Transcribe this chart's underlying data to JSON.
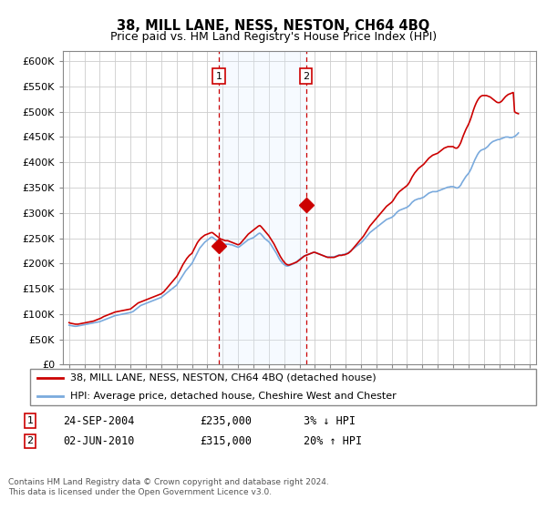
{
  "title": "38, MILL LANE, NESS, NESTON, CH64 4BQ",
  "subtitle": "Price paid vs. HM Land Registry's House Price Index (HPI)",
  "ylabel_ticks": [
    "£0",
    "£50K",
    "£100K",
    "£150K",
    "£200K",
    "£250K",
    "£300K",
    "£350K",
    "£400K",
    "£450K",
    "£500K",
    "£550K",
    "£600K"
  ],
  "ytick_values": [
    0,
    50000,
    100000,
    150000,
    200000,
    250000,
    300000,
    350000,
    400000,
    450000,
    500000,
    550000,
    600000
  ],
  "ylim": [
    0,
    620000
  ],
  "legend_line1": "38, MILL LANE, NESS, NESTON, CH64 4BQ (detached house)",
  "legend_line2": "HPI: Average price, detached house, Cheshire West and Chester",
  "transaction1_label": "1",
  "transaction1_date": "24-SEP-2004",
  "transaction1_price": "£235,000",
  "transaction1_hpi": "3% ↓ HPI",
  "transaction1_year": 2004.75,
  "transaction1_value": 235000,
  "transaction2_label": "2",
  "transaction2_date": "02-JUN-2010",
  "transaction2_price": "£315,000",
  "transaction2_hpi": "20% ↑ HPI",
  "transaction2_year": 2010.42,
  "transaction2_value": 315000,
  "footnote1": "Contains HM Land Registry data © Crown copyright and database right 2024.",
  "footnote2": "This data is licensed under the Open Government Licence v3.0.",
  "line_color_property": "#cc0000",
  "line_color_hpi": "#7aaadd",
  "shade_color": "#ddeeff",
  "vline_color": "#cc0000",
  "marker_box_color": "#cc0000",
  "hpi_data_years": [
    1995.0,
    1995.083,
    1995.167,
    1995.25,
    1995.333,
    1995.417,
    1995.5,
    1995.583,
    1995.667,
    1995.75,
    1995.833,
    1995.917,
    1996.0,
    1996.083,
    1996.167,
    1996.25,
    1996.333,
    1996.417,
    1996.5,
    1996.583,
    1996.667,
    1996.75,
    1996.833,
    1996.917,
    1997.0,
    1997.083,
    1997.167,
    1997.25,
    1997.333,
    1997.417,
    1997.5,
    1997.583,
    1997.667,
    1997.75,
    1997.833,
    1997.917,
    1998.0,
    1998.083,
    1998.167,
    1998.25,
    1998.333,
    1998.417,
    1998.5,
    1998.583,
    1998.667,
    1998.75,
    1998.833,
    1998.917,
    1999.0,
    1999.083,
    1999.167,
    1999.25,
    1999.333,
    1999.417,
    1999.5,
    1999.583,
    1999.667,
    1999.75,
    1999.833,
    1999.917,
    2000.0,
    2000.083,
    2000.167,
    2000.25,
    2000.333,
    2000.417,
    2000.5,
    2000.583,
    2000.667,
    2000.75,
    2000.833,
    2000.917,
    2001.0,
    2001.083,
    2001.167,
    2001.25,
    2001.333,
    2001.417,
    2001.5,
    2001.583,
    2001.667,
    2001.75,
    2001.833,
    2001.917,
    2002.0,
    2002.083,
    2002.167,
    2002.25,
    2002.333,
    2002.417,
    2002.5,
    2002.583,
    2002.667,
    2002.75,
    2002.833,
    2002.917,
    2003.0,
    2003.083,
    2003.167,
    2003.25,
    2003.333,
    2003.417,
    2003.5,
    2003.583,
    2003.667,
    2003.75,
    2003.833,
    2003.917,
    2004.0,
    2004.083,
    2004.167,
    2004.25,
    2004.333,
    2004.417,
    2004.5,
    2004.583,
    2004.667,
    2004.75,
    2004.833,
    2004.917,
    2005.0,
    2005.083,
    2005.167,
    2005.25,
    2005.333,
    2005.417,
    2005.5,
    2005.583,
    2005.667,
    2005.75,
    2005.833,
    2005.917,
    2006.0,
    2006.083,
    2006.167,
    2006.25,
    2006.333,
    2006.417,
    2006.5,
    2006.583,
    2006.667,
    2006.75,
    2006.833,
    2006.917,
    2007.0,
    2007.083,
    2007.167,
    2007.25,
    2007.333,
    2007.417,
    2007.5,
    2007.583,
    2007.667,
    2007.75,
    2007.833,
    2007.917,
    2008.0,
    2008.083,
    2008.167,
    2008.25,
    2008.333,
    2008.417,
    2008.5,
    2008.583,
    2008.667,
    2008.75,
    2008.833,
    2008.917,
    2009.0,
    2009.083,
    2009.167,
    2009.25,
    2009.333,
    2009.417,
    2009.5,
    2009.583,
    2009.667,
    2009.75,
    2009.833,
    2009.917,
    2010.0,
    2010.083,
    2010.167,
    2010.25,
    2010.333,
    2010.417,
    2010.5,
    2010.583,
    2010.667,
    2010.75,
    2010.833,
    2010.917,
    2011.0,
    2011.083,
    2011.167,
    2011.25,
    2011.333,
    2011.417,
    2011.5,
    2011.583,
    2011.667,
    2011.75,
    2011.833,
    2011.917,
    2012.0,
    2012.083,
    2012.167,
    2012.25,
    2012.333,
    2012.417,
    2012.5,
    2012.583,
    2012.667,
    2012.75,
    2012.833,
    2012.917,
    2013.0,
    2013.083,
    2013.167,
    2013.25,
    2013.333,
    2013.417,
    2013.5,
    2013.583,
    2013.667,
    2013.75,
    2013.833,
    2013.917,
    2014.0,
    2014.083,
    2014.167,
    2014.25,
    2014.333,
    2014.417,
    2014.5,
    2014.583,
    2014.667,
    2014.75,
    2014.833,
    2014.917,
    2015.0,
    2015.083,
    2015.167,
    2015.25,
    2015.333,
    2015.417,
    2015.5,
    2015.583,
    2015.667,
    2015.75,
    2015.833,
    2015.917,
    2016.0,
    2016.083,
    2016.167,
    2016.25,
    2016.333,
    2016.417,
    2016.5,
    2016.583,
    2016.667,
    2016.75,
    2016.833,
    2016.917,
    2017.0,
    2017.083,
    2017.167,
    2017.25,
    2017.333,
    2017.417,
    2017.5,
    2017.583,
    2017.667,
    2017.75,
    2017.833,
    2017.917,
    2018.0,
    2018.083,
    2018.167,
    2018.25,
    2018.333,
    2018.417,
    2018.5,
    2018.583,
    2018.667,
    2018.75,
    2018.833,
    2018.917,
    2019.0,
    2019.083,
    2019.167,
    2019.25,
    2019.333,
    2019.417,
    2019.5,
    2019.583,
    2019.667,
    2019.75,
    2019.833,
    2019.917,
    2020.0,
    2020.083,
    2020.167,
    2020.25,
    2020.333,
    2020.417,
    2020.5,
    2020.583,
    2020.667,
    2020.75,
    2020.833,
    2020.917,
    2021.0,
    2021.083,
    2021.167,
    2021.25,
    2021.333,
    2021.417,
    2021.5,
    2021.583,
    2021.667,
    2021.75,
    2021.833,
    2021.917,
    2022.0,
    2022.083,
    2022.167,
    2022.25,
    2022.333,
    2022.417,
    2022.5,
    2022.583,
    2022.667,
    2022.75,
    2022.833,
    2022.917,
    2023.0,
    2023.083,
    2023.167,
    2023.25,
    2023.333,
    2023.417,
    2023.5,
    2023.583,
    2023.667,
    2023.75,
    2023.833,
    2023.917,
    2024.0,
    2024.083,
    2024.167,
    2024.25
  ],
  "hpi_data_values": [
    78000,
    77500,
    77000,
    76500,
    76000,
    75800,
    76000,
    76500,
    77000,
    77500,
    78000,
    78500,
    79000,
    79500,
    80000,
    80500,
    81000,
    81500,
    82000,
    82500,
    83000,
    83500,
    84000,
    84500,
    85000,
    86000,
    87000,
    88000,
    89000,
    90000,
    91000,
    92000,
    93000,
    94000,
    95000,
    96000,
    97000,
    97500,
    98000,
    98500,
    99000,
    99500,
    100000,
    100500,
    101000,
    101500,
    102000,
    102500,
    103000,
    104000,
    105000,
    107000,
    109000,
    111000,
    113000,
    115000,
    117000,
    118000,
    119000,
    120000,
    121000,
    122000,
    123000,
    124000,
    125000,
    126000,
    127000,
    128000,
    129000,
    130000,
    131000,
    132000,
    133000,
    135000,
    137000,
    139000,
    141000,
    143000,
    145000,
    147000,
    149000,
    151000,
    153000,
    155000,
    157000,
    161000,
    165000,
    169000,
    173000,
    177000,
    181000,
    185000,
    188000,
    191000,
    194000,
    197000,
    200000,
    205000,
    210000,
    215000,
    220000,
    225000,
    230000,
    233000,
    236000,
    239000,
    242000,
    244000,
    246000,
    248000,
    250000,
    252000,
    252000,
    250000,
    248000,
    246000,
    244000,
    242000,
    241000,
    240000,
    239000,
    238000,
    238000,
    238000,
    238000,
    238000,
    237000,
    237000,
    236000,
    235000,
    234000,
    233000,
    232000,
    233000,
    235000,
    237000,
    239000,
    241000,
    243000,
    245000,
    247000,
    248000,
    249000,
    250000,
    251000,
    253000,
    255000,
    257000,
    259000,
    260000,
    258000,
    255000,
    252000,
    249000,
    247000,
    245000,
    243000,
    240000,
    236000,
    232000,
    228000,
    224000,
    220000,
    215000,
    210000,
    206000,
    203000,
    200000,
    198000,
    196000,
    195000,
    195000,
    196000,
    197000,
    198000,
    199000,
    200000,
    202000,
    204000,
    206000,
    208000,
    210000,
    212000,
    214000,
    215000,
    216000,
    217000,
    218000,
    219000,
    220000,
    221000,
    222000,
    222000,
    221000,
    220000,
    219000,
    218000,
    217000,
    216000,
    215000,
    214000,
    213000,
    213000,
    213000,
    213000,
    213000,
    213000,
    213000,
    214000,
    215000,
    216000,
    217000,
    217000,
    217000,
    218000,
    218000,
    219000,
    220000,
    221000,
    223000,
    225000,
    227000,
    229000,
    231000,
    233000,
    235000,
    237000,
    239000,
    241000,
    243000,
    246000,
    249000,
    252000,
    255000,
    258000,
    261000,
    263000,
    265000,
    267000,
    269000,
    271000,
    273000,
    275000,
    277000,
    279000,
    281000,
    283000,
    285000,
    287000,
    288000,
    289000,
    290000,
    291000,
    293000,
    295000,
    298000,
    301000,
    303000,
    305000,
    306000,
    307000,
    308000,
    309000,
    310000,
    311000,
    313000,
    315000,
    318000,
    321000,
    323000,
    325000,
    326000,
    327000,
    328000,
    328000,
    329000,
    330000,
    331000,
    333000,
    335000,
    337000,
    339000,
    340000,
    341000,
    342000,
    342000,
    342000,
    342000,
    343000,
    344000,
    345000,
    346000,
    347000,
    348000,
    349000,
    350000,
    351000,
    351000,
    352000,
    352000,
    352000,
    351000,
    350000,
    349000,
    350000,
    352000,
    355000,
    360000,
    364000,
    368000,
    372000,
    375000,
    378000,
    382000,
    387000,
    393000,
    399000,
    405000,
    410000,
    415000,
    419000,
    422000,
    424000,
    425000,
    426000,
    427000,
    429000,
    431000,
    434000,
    437000,
    439000,
    441000,
    442000,
    443000,
    444000,
    445000,
    445000,
    446000,
    447000,
    448000,
    449000,
    450000,
    450000,
    450000,
    449000,
    449000,
    449000,
    450000,
    451000,
    453000,
    455000,
    458000
  ],
  "prop_data_years": [
    1995.0,
    1995.083,
    1995.167,
    1995.25,
    1995.333,
    1995.417,
    1995.5,
    1995.583,
    1995.667,
    1995.75,
    1995.833,
    1995.917,
    1996.0,
    1996.083,
    1996.167,
    1996.25,
    1996.333,
    1996.417,
    1996.5,
    1996.583,
    1996.667,
    1996.75,
    1996.833,
    1996.917,
    1997.0,
    1997.083,
    1997.167,
    1997.25,
    1997.333,
    1997.417,
    1997.5,
    1997.583,
    1997.667,
    1997.75,
    1997.833,
    1997.917,
    1998.0,
    1998.083,
    1998.167,
    1998.25,
    1998.333,
    1998.417,
    1998.5,
    1998.583,
    1998.667,
    1998.75,
    1998.833,
    1998.917,
    1999.0,
    1999.083,
    1999.167,
    1999.25,
    1999.333,
    1999.417,
    1999.5,
    1999.583,
    1999.667,
    1999.75,
    1999.833,
    1999.917,
    2000.0,
    2000.083,
    2000.167,
    2000.25,
    2000.333,
    2000.417,
    2000.5,
    2000.583,
    2000.667,
    2000.75,
    2000.833,
    2000.917,
    2001.0,
    2001.083,
    2001.167,
    2001.25,
    2001.333,
    2001.417,
    2001.5,
    2001.583,
    2001.667,
    2001.75,
    2001.833,
    2001.917,
    2002.0,
    2002.083,
    2002.167,
    2002.25,
    2002.333,
    2002.417,
    2002.5,
    2002.583,
    2002.667,
    2002.75,
    2002.833,
    2002.917,
    2003.0,
    2003.083,
    2003.167,
    2003.25,
    2003.333,
    2003.417,
    2003.5,
    2003.583,
    2003.667,
    2003.75,
    2003.833,
    2003.917,
    2004.0,
    2004.083,
    2004.167,
    2004.25,
    2004.333,
    2004.417,
    2004.5,
    2004.583,
    2004.667,
    2004.75,
    2004.833,
    2004.917,
    2005.0,
    2005.083,
    2005.167,
    2005.25,
    2005.333,
    2005.417,
    2005.5,
    2005.583,
    2005.667,
    2005.75,
    2005.833,
    2005.917,
    2006.0,
    2006.083,
    2006.167,
    2006.25,
    2006.333,
    2006.417,
    2006.5,
    2006.583,
    2006.667,
    2006.75,
    2006.833,
    2006.917,
    2007.0,
    2007.083,
    2007.167,
    2007.25,
    2007.333,
    2007.417,
    2007.5,
    2007.583,
    2007.667,
    2007.75,
    2007.833,
    2007.917,
    2008.0,
    2008.083,
    2008.167,
    2008.25,
    2008.333,
    2008.417,
    2008.5,
    2008.583,
    2008.667,
    2008.75,
    2008.833,
    2008.917,
    2009.0,
    2009.083,
    2009.167,
    2009.25,
    2009.333,
    2009.417,
    2009.5,
    2009.583,
    2009.667,
    2009.75,
    2009.833,
    2009.917,
    2010.0,
    2010.083,
    2010.167,
    2010.25,
    2010.333,
    2010.417,
    2010.5,
    2010.583,
    2010.667,
    2010.75,
    2010.833,
    2010.917,
    2011.0,
    2011.083,
    2011.167,
    2011.25,
    2011.333,
    2011.417,
    2011.5,
    2011.583,
    2011.667,
    2011.75,
    2011.833,
    2011.917,
    2012.0,
    2012.083,
    2012.167,
    2012.25,
    2012.333,
    2012.417,
    2012.5,
    2012.583,
    2012.667,
    2012.75,
    2012.833,
    2012.917,
    2013.0,
    2013.083,
    2013.167,
    2013.25,
    2013.333,
    2013.417,
    2013.5,
    2013.583,
    2013.667,
    2013.75,
    2013.833,
    2013.917,
    2014.0,
    2014.083,
    2014.167,
    2014.25,
    2014.333,
    2014.417,
    2014.5,
    2014.583,
    2014.667,
    2014.75,
    2014.833,
    2014.917,
    2015.0,
    2015.083,
    2015.167,
    2015.25,
    2015.333,
    2015.417,
    2015.5,
    2015.583,
    2015.667,
    2015.75,
    2015.833,
    2015.917,
    2016.0,
    2016.083,
    2016.167,
    2016.25,
    2016.333,
    2016.417,
    2016.5,
    2016.583,
    2016.667,
    2016.75,
    2016.833,
    2016.917,
    2017.0,
    2017.083,
    2017.167,
    2017.25,
    2017.333,
    2017.417,
    2017.5,
    2017.583,
    2017.667,
    2017.75,
    2017.833,
    2017.917,
    2018.0,
    2018.083,
    2018.167,
    2018.25,
    2018.333,
    2018.417,
    2018.5,
    2018.583,
    2018.667,
    2018.75,
    2018.833,
    2018.917,
    2019.0,
    2019.083,
    2019.167,
    2019.25,
    2019.333,
    2019.417,
    2019.5,
    2019.583,
    2019.667,
    2019.75,
    2019.833,
    2019.917,
    2020.0,
    2020.083,
    2020.167,
    2020.25,
    2020.333,
    2020.417,
    2020.5,
    2020.583,
    2020.667,
    2020.75,
    2020.833,
    2020.917,
    2021.0,
    2021.083,
    2021.167,
    2021.25,
    2021.333,
    2021.417,
    2021.5,
    2021.583,
    2021.667,
    2021.75,
    2021.833,
    2021.917,
    2022.0,
    2022.083,
    2022.167,
    2022.25,
    2022.333,
    2022.417,
    2022.5,
    2022.583,
    2022.667,
    2022.75,
    2022.833,
    2022.917,
    2023.0,
    2023.083,
    2023.167,
    2023.25,
    2023.333,
    2023.417,
    2023.5,
    2023.583,
    2023.667,
    2023.75,
    2023.833,
    2023.917,
    2024.0,
    2024.083,
    2024.167,
    2024.25
  ],
  "prop_data_values": [
    83000,
    82000,
    81500,
    81000,
    80500,
    80000,
    80000,
    80000,
    80500,
    81000,
    81500,
    82000,
    82500,
    83000,
    83500,
    84000,
    84500,
    85000,
    85500,
    86000,
    87000,
    88000,
    89000,
    90000,
    91000,
    92000,
    93500,
    95000,
    96000,
    97000,
    98000,
    99000,
    100000,
    101000,
    102000,
    103000,
    104000,
    104500,
    105000,
    105500,
    106000,
    106500,
    107000,
    107500,
    108000,
    108500,
    109000,
    109500,
    110000,
    112000,
    114000,
    116000,
    118000,
    120000,
    122000,
    123000,
    124000,
    125000,
    126000,
    127000,
    128000,
    129000,
    130000,
    131000,
    132000,
    133000,
    134000,
    135000,
    136000,
    137000,
    138000,
    139000,
    140000,
    142000,
    144000,
    147000,
    150000,
    153000,
    156000,
    159000,
    162000,
    165000,
    168000,
    171000,
    174000,
    178000,
    183000,
    188000,
    193000,
    198000,
    202000,
    206000,
    210000,
    213000,
    216000,
    218000,
    220000,
    225000,
    230000,
    235000,
    240000,
    244000,
    247000,
    250000,
    252000,
    254000,
    256000,
    257000,
    258000,
    259000,
    260000,
    261000,
    261000,
    259000,
    257000,
    255000,
    253000,
    251000,
    249000,
    248000,
    247000,
    246000,
    245000,
    245000,
    245000,
    244000,
    243000,
    242000,
    241000,
    240000,
    239000,
    238000,
    237000,
    238000,
    240000,
    243000,
    246000,
    249000,
    252000,
    255000,
    258000,
    260000,
    262000,
    264000,
    266000,
    268000,
    270000,
    272000,
    274000,
    275000,
    273000,
    270000,
    267000,
    264000,
    261000,
    258000,
    255000,
    251000,
    247000,
    243000,
    239000,
    234000,
    229000,
    224000,
    219000,
    214000,
    210000,
    206000,
    203000,
    200000,
    198000,
    197000,
    197000,
    198000,
    199000,
    200000,
    201000,
    202000,
    203000,
    205000,
    207000,
    209000,
    211000,
    213000,
    215000,
    216000,
    217000,
    218000,
    219000,
    220000,
    221000,
    222000,
    222000,
    221000,
    220000,
    219000,
    218000,
    217000,
    216000,
    215000,
    214000,
    213000,
    212000,
    212000,
    212000,
    212000,
    212000,
    212000,
    213000,
    214000,
    215000,
    216000,
    216000,
    216000,
    217000,
    217000,
    218000,
    219000,
    220000,
    222000,
    224000,
    227000,
    230000,
    233000,
    236000,
    239000,
    242000,
    245000,
    248000,
    251000,
    254000,
    258000,
    262000,
    266000,
    270000,
    274000,
    277000,
    280000,
    283000,
    286000,
    289000,
    292000,
    295000,
    298000,
    301000,
    304000,
    307000,
    310000,
    313000,
    315000,
    317000,
    319000,
    321000,
    324000,
    328000,
    332000,
    336000,
    339000,
    342000,
    344000,
    346000,
    348000,
    350000,
    352000,
    354000,
    357000,
    361000,
    366000,
    371000,
    375000,
    379000,
    382000,
    385000,
    388000,
    390000,
    392000,
    394000,
    396000,
    399000,
    402000,
    405000,
    408000,
    410000,
    412000,
    414000,
    415000,
    416000,
    417000,
    418000,
    420000,
    422000,
    424000,
    426000,
    428000,
    429000,
    430000,
    431000,
    431000,
    431000,
    431000,
    431000,
    429000,
    428000,
    428000,
    430000,
    434000,
    439000,
    446000,
    453000,
    459000,
    465000,
    470000,
    475000,
    481000,
    488000,
    496000,
    504000,
    511000,
    517000,
    522000,
    526000,
    529000,
    531000,
    532000,
    532000,
    532000,
    532000,
    531000,
    530000,
    529000,
    527000,
    525000,
    523000,
    521000,
    519000,
    518000,
    518000,
    519000,
    521000,
    524000,
    527000,
    530000,
    532000,
    534000,
    535000,
    536000,
    537000,
    538000,
    500000,
    498000,
    497000,
    496000
  ]
}
